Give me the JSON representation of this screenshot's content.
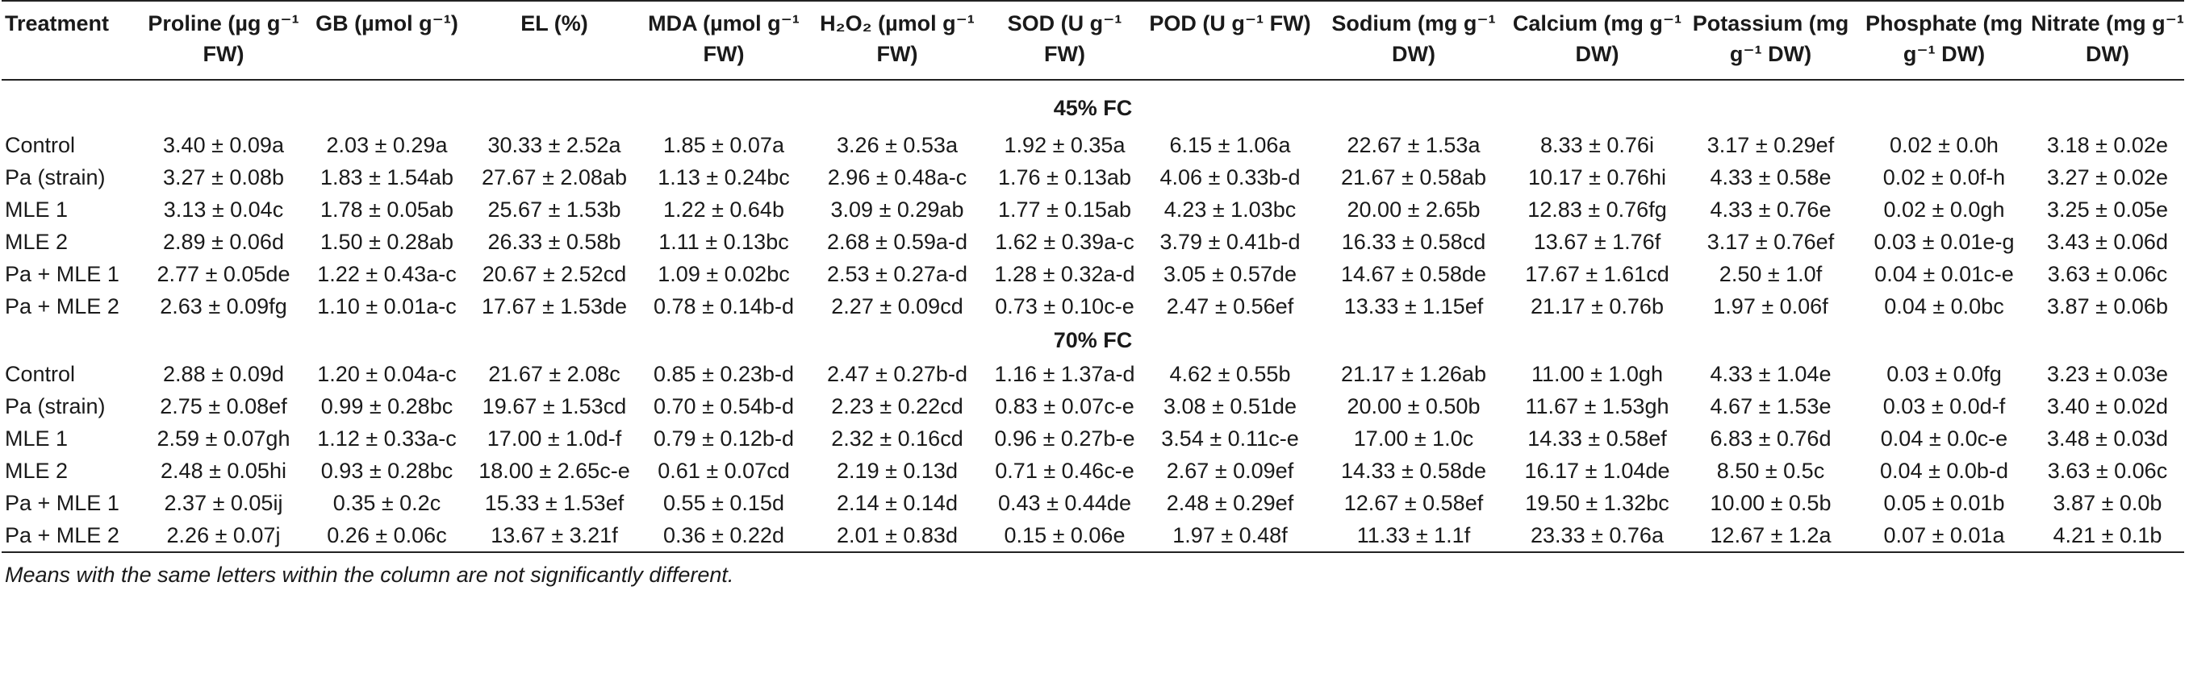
{
  "header": {
    "treatment": "Treatment",
    "proline": "Proline (µg g⁻¹ FW)",
    "gb": "GB (µmol g⁻¹)",
    "el": "EL (%)",
    "mda": "MDA (µmol g⁻¹ FW)",
    "h2o2": "H₂O₂ (µmol g⁻¹ FW)",
    "sod": "SOD (U g⁻¹ FW)",
    "pod": "POD (U g⁻¹ FW)",
    "sodium": "Sodium (mg g⁻¹ DW)",
    "calcium": "Calcium (mg g⁻¹ DW)",
    "potassium": "Potassium (mg g⁻¹ DW)",
    "phosphate": "Phosphate (mg g⁻¹ DW)",
    "nitrate": "Nitrate (mg g⁻¹ DW)"
  },
  "sections": [
    {
      "title": "45% FC",
      "rows": [
        [
          "Control",
          "3.40 ± 0.09a",
          "2.03 ± 0.29a",
          "30.33 ± 2.52a",
          "1.85 ± 0.07a",
          "3.26 ± 0.53a",
          "1.92 ± 0.35a",
          "6.15 ± 1.06a",
          "22.67 ± 1.53a",
          "8.33 ± 0.76i",
          "3.17 ± 0.29ef",
          "0.02 ± 0.0h",
          "3.18 ± 0.02e"
        ],
        [
          "Pa (strain)",
          "3.27 ± 0.08b",
          "1.83 ± 1.54ab",
          "27.67 ± 2.08ab",
          "1.13 ± 0.24bc",
          "2.96 ± 0.48a-c",
          "1.76 ± 0.13ab",
          "4.06 ± 0.33b-d",
          "21.67 ± 0.58ab",
          "10.17 ± 0.76hi",
          "4.33 ± 0.58e",
          "0.02 ± 0.0f-h",
          "3.27 ± 0.02e"
        ],
        [
          "MLE 1",
          "3.13 ± 0.04c",
          "1.78 ± 0.05ab",
          "25.67 ± 1.53b",
          "1.22 ± 0.64b",
          "3.09 ± 0.29ab",
          "1.77 ± 0.15ab",
          "4.23 ± 1.03bc",
          "20.00 ± 2.65b",
          "12.83 ± 0.76fg",
          "4.33 ± 0.76e",
          "0.02 ± 0.0gh",
          "3.25 ± 0.05e"
        ],
        [
          "MLE 2",
          "2.89 ± 0.06d",
          "1.50 ± 0.28ab",
          "26.33 ± 0.58b",
          "1.11 ± 0.13bc",
          "2.68 ± 0.59a-d",
          "1.62 ± 0.39a-c",
          "3.79 ± 0.41b-d",
          "16.33 ± 0.58cd",
          "13.67 ± 1.76f",
          "3.17 ± 0.76ef",
          "0.03 ± 0.01e-g",
          "3.43 ± 0.06d"
        ],
        [
          "Pa + MLE 1",
          "2.77 ± 0.05de",
          "1.22 ± 0.43a-c",
          "20.67 ± 2.52cd",
          "1.09 ± 0.02bc",
          "2.53 ± 0.27a-d",
          "1.28 ± 0.32a-d",
          "3.05 ± 0.57de",
          "14.67 ± 0.58de",
          "17.67 ± 1.61cd",
          "2.50 ± 1.0f",
          "0.04 ± 0.01c-e",
          "3.63 ± 0.06c"
        ],
        [
          "Pa + MLE 2",
          "2.63 ± 0.09fg",
          "1.10 ± 0.01a-c",
          "17.67 ± 1.53de",
          "0.78 ± 0.14b-d",
          "2.27 ± 0.09cd",
          "0.73 ± 0.10c-e",
          "2.47 ± 0.56ef",
          "13.33 ± 1.15ef",
          "21.17 ± 0.76b",
          "1.97 ± 0.06f",
          "0.04 ± 0.0bc",
          "3.87 ± 0.06b"
        ]
      ]
    },
    {
      "title": "70% FC",
      "rows": [
        [
          "Control",
          "2.88 ± 0.09d",
          "1.20 ± 0.04a-c",
          "21.67 ± 2.08c",
          "0.85 ± 0.23b-d",
          "2.47 ± 0.27b-d",
          "1.16 ± 1.37a-d",
          "4.62 ± 0.55b",
          "21.17 ± 1.26ab",
          "11.00 ± 1.0gh",
          "4.33 ± 1.04e",
          "0.03 ± 0.0fg",
          "3.23 ± 0.03e"
        ],
        [
          "Pa (strain)",
          "2.75 ± 0.08ef",
          "0.99 ± 0.28bc",
          "19.67 ± 1.53cd",
          "0.70 ± 0.54b-d",
          "2.23 ± 0.22cd",
          "0.83 ± 0.07c-e",
          "3.08 ± 0.51de",
          "20.00 ± 0.50b",
          "11.67 ± 1.53gh",
          "4.67 ± 1.53e",
          "0.03 ± 0.0d-f",
          "3.40 ± 0.02d"
        ],
        [
          "MLE 1",
          "2.59 ± 0.07gh",
          "1.12 ± 0.33a-c",
          "17.00 ± 1.0d-f",
          "0.79 ± 0.12b-d",
          "2.32 ± 0.16cd",
          "0.96 ± 0.27b-e",
          "3.54 ± 0.11c-e",
          "17.00 ± 1.0c",
          "14.33 ± 0.58ef",
          "6.83 ± 0.76d",
          "0.04 ± 0.0c-e",
          "3.48 ± 0.03d"
        ],
        [
          "MLE 2",
          "2.48 ± 0.05hi",
          "0.93 ± 0.28bc",
          "18.00 ± 2.65c-e",
          "0.61 ± 0.07cd",
          "2.19 ± 0.13d",
          "0.71 ± 0.46c-e",
          "2.67 ± 0.09ef",
          "14.33 ± 0.58de",
          "16.17 ± 1.04de",
          "8.50 ± 0.5c",
          "0.04 ± 0.0b-d",
          "3.63 ± 0.06c"
        ],
        [
          "Pa + MLE 1",
          "2.37 ± 0.05ij",
          "0.35 ± 0.2c",
          "15.33 ± 1.53ef",
          "0.55 ± 0.15d",
          "2.14 ± 0.14d",
          "0.43 ± 0.44de",
          "2.48 ± 0.29ef",
          "12.67 ± 0.58ef",
          "19.50 ± 1.32bc",
          "10.00 ± 0.5b",
          "0.05 ± 0.01b",
          "3.87 ± 0.0b"
        ],
        [
          "Pa + MLE 2",
          "2.26 ± 0.07j",
          "0.26 ± 0.06c",
          "13.67 ± 3.21f",
          "0.36 ± 0.22d",
          "2.01 ± 0.83d",
          "0.15 ± 0.06e",
          "1.97 ± 0.48f",
          "11.33 ± 1.1f",
          "23.33 ± 0.76a",
          "12.67 ± 1.2a",
          "0.07 ± 0.01a",
          "4.21 ± 0.1b"
        ]
      ]
    }
  ],
  "footnote": "Means with the same letters within the column are not significantly different."
}
